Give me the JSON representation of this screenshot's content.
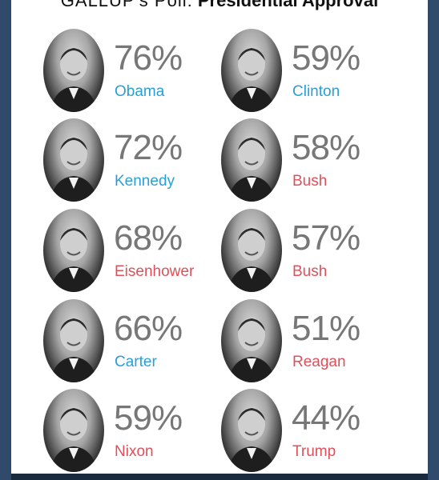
{
  "colors": {
    "positive": "#2a9fd6",
    "negative": "#e0505a",
    "value_text": "#777777",
    "background": "#2f4a6a"
  },
  "header": {
    "title_light": "GALLUP's Poll:",
    "title_bold": "Presidential Approval"
  },
  "chart_data": {
    "type": "table",
    "title": "GALLUP's Poll: Presidential Approval",
    "columns": [
      [
        {
          "name": "Obama",
          "value": 76,
          "label": "76%",
          "color": "blue"
        },
        {
          "name": "Kennedy",
          "value": 72,
          "label": "72%",
          "color": "blue"
        },
        {
          "name": "Eisenhower",
          "value": 68,
          "label": "68%",
          "color": "red"
        },
        {
          "name": "Carter",
          "value": 66,
          "label": "66%",
          "color": "blue"
        },
        {
          "name": "Nixon",
          "value": 59,
          "label": "59%",
          "color": "red"
        }
      ],
      [
        {
          "name": "Clinton",
          "value": 59,
          "label": "59%",
          "color": "blue"
        },
        {
          "name": "Bush",
          "value": 58,
          "label": "58%",
          "color": "red"
        },
        {
          "name": "Bush",
          "value": 57,
          "label": "57%",
          "color": "red"
        },
        {
          "name": "Reagan",
          "value": 51,
          "label": "51%",
          "color": "red"
        },
        {
          "name": "Trump",
          "value": 44,
          "label": "44%",
          "color": "red"
        }
      ]
    ]
  }
}
